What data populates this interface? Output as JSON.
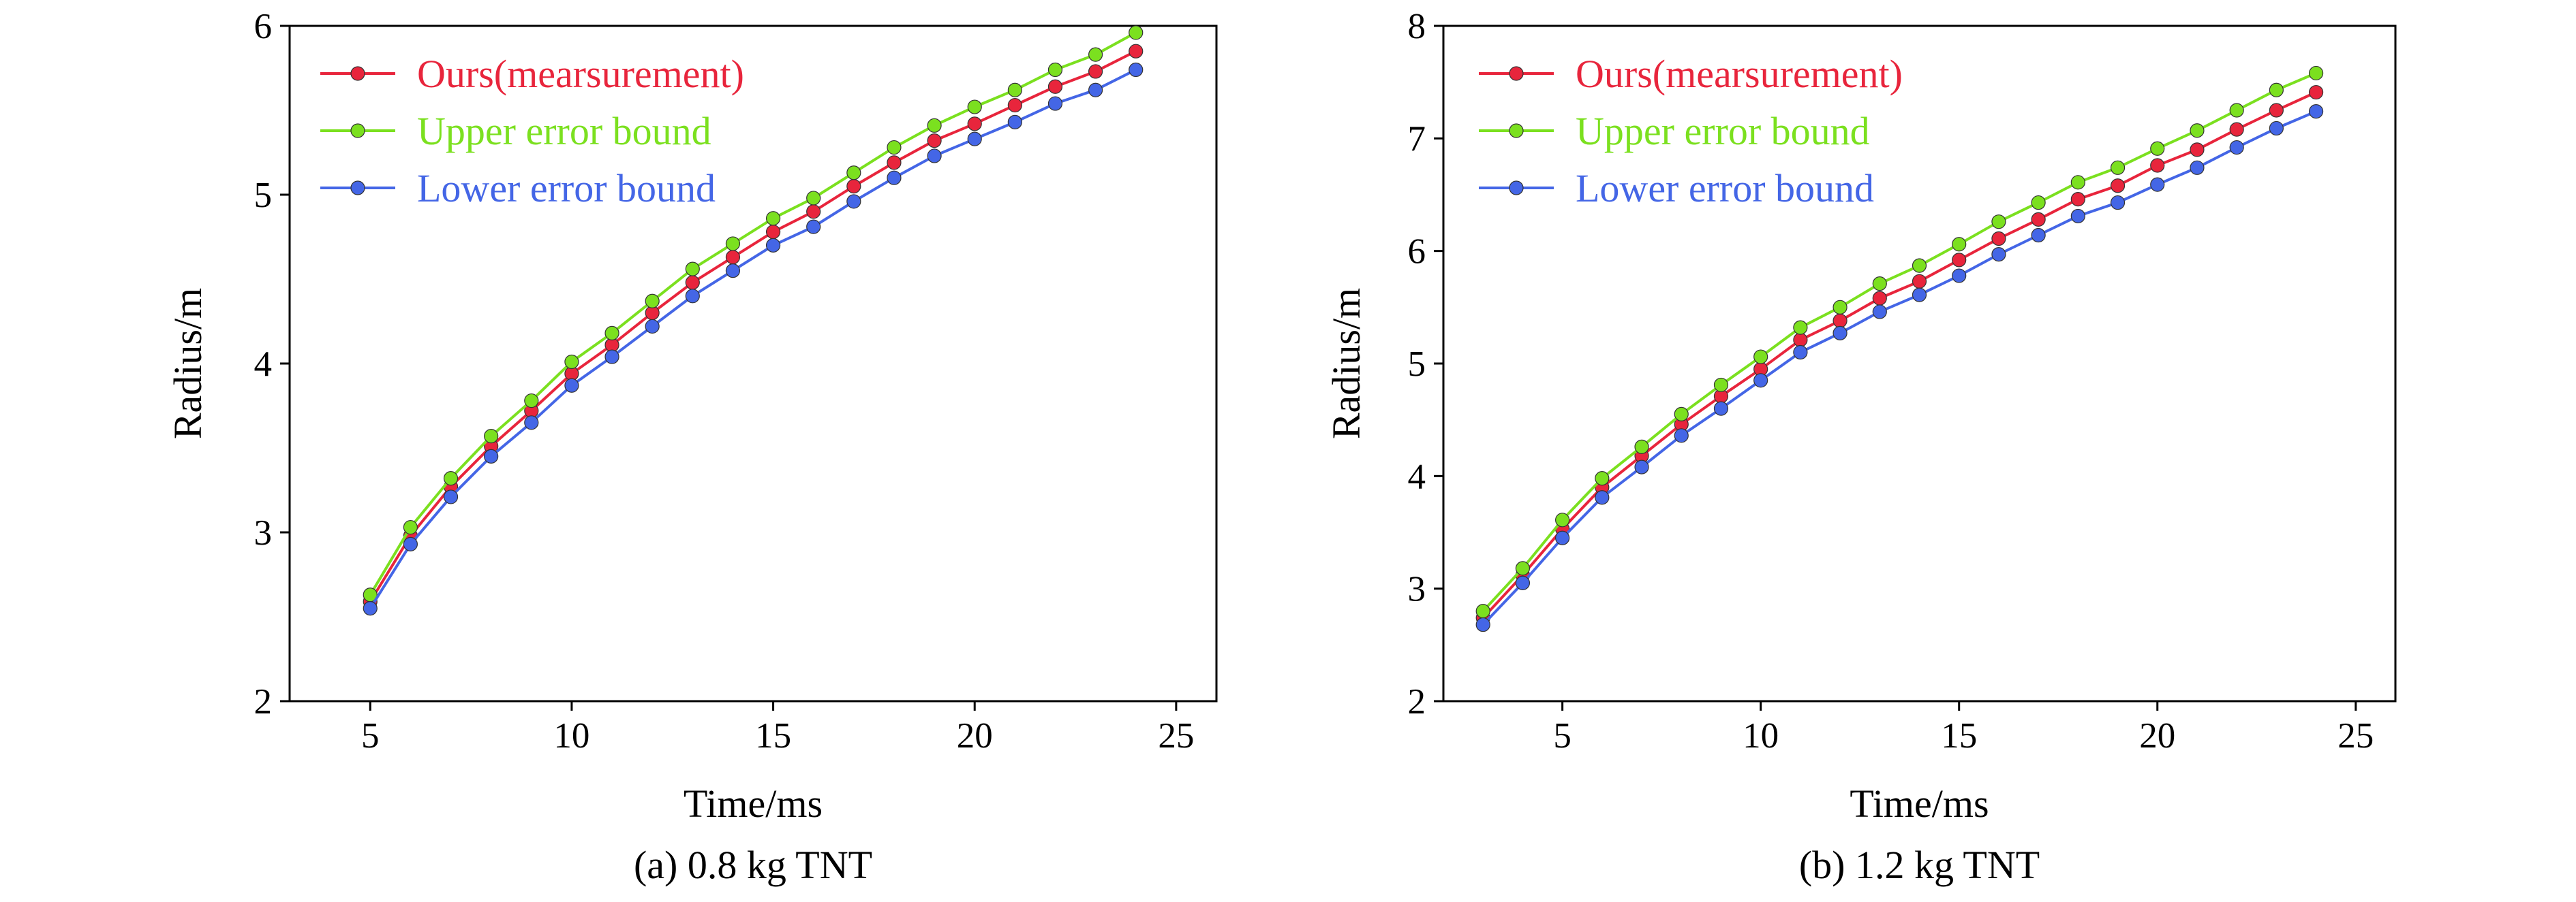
{
  "chart_data": [
    {
      "type": "line",
      "caption": "(a) 0.8 kg TNT",
      "xlabel": "Time/ms",
      "ylabel": "Radius/m",
      "xlim": [
        3,
        26
      ],
      "ylim": [
        2,
        6
      ],
      "xticks": [
        5,
        10,
        15,
        20,
        25
      ],
      "yticks": [
        2,
        3,
        4,
        5,
        6
      ],
      "grid": false,
      "legend_position": "top-left",
      "x": [
        5,
        6,
        7,
        8,
        9,
        10,
        11,
        12,
        13,
        14,
        15,
        16,
        17,
        18,
        19,
        20,
        21,
        22,
        23,
        24
      ],
      "series": [
        {
          "name": "Ours(mearsurement)",
          "color": "#e8253c",
          "values": [
            2.59,
            2.98,
            3.27,
            3.51,
            3.72,
            3.94,
            4.11,
            4.3,
            4.48,
            4.63,
            4.78,
            4.9,
            5.05,
            5.19,
            5.32,
            5.42,
            5.53,
            5.64,
            5.73,
            5.85
          ]
        },
        {
          "name": "Upper error bound",
          "color": "#7be01f",
          "values": [
            2.63,
            3.03,
            3.32,
            3.57,
            3.78,
            4.01,
            4.18,
            4.37,
            4.56,
            4.71,
            4.86,
            4.98,
            5.13,
            5.28,
            5.41,
            5.52,
            5.62,
            5.74,
            5.83,
            5.96
          ]
        },
        {
          "name": "Lower error bound",
          "color": "#4466e6",
          "values": [
            2.55,
            2.93,
            3.21,
            3.45,
            3.65,
            3.87,
            4.04,
            4.22,
            4.4,
            4.55,
            4.7,
            4.81,
            4.96,
            5.1,
            5.23,
            5.33,
            5.43,
            5.54,
            5.62,
            5.74
          ]
        }
      ]
    },
    {
      "type": "line",
      "caption": "(b) 1.2 kg TNT",
      "xlabel": "Time/ms",
      "ylabel": "Radius/m",
      "xlim": [
        2,
        26
      ],
      "ylim": [
        2,
        8
      ],
      "xticks": [
        5,
        10,
        15,
        20,
        25
      ],
      "yticks": [
        2,
        3,
        4,
        5,
        6,
        7,
        8
      ],
      "grid": false,
      "legend_position": "top-left",
      "x": [
        3,
        4,
        5,
        6,
        7,
        8,
        9,
        10,
        11,
        12,
        13,
        14,
        15,
        16,
        17,
        18,
        19,
        20,
        21,
        22,
        23,
        24
      ],
      "series": [
        {
          "name": "Ours(mearsurement)",
          "color": "#e8253c",
          "values": [
            2.74,
            3.12,
            3.53,
            3.9,
            4.18,
            4.46,
            4.71,
            4.95,
            5.21,
            5.38,
            5.58,
            5.73,
            5.92,
            6.11,
            6.28,
            6.46,
            6.58,
            6.76,
            6.9,
            7.08,
            7.25,
            7.41
          ]
        },
        {
          "name": "Upper error bound",
          "color": "#7be01f",
          "values": [
            2.8,
            3.18,
            3.61,
            3.98,
            4.26,
            4.55,
            4.81,
            5.06,
            5.32,
            5.5,
            5.71,
            5.87,
            6.06,
            6.26,
            6.43,
            6.61,
            6.74,
            6.91,
            7.07,
            7.25,
            7.43,
            7.58
          ]
        },
        {
          "name": "Lower error bound",
          "color": "#4466e6",
          "values": [
            2.68,
            3.05,
            3.45,
            3.81,
            4.08,
            4.36,
            4.6,
            4.85,
            5.1,
            5.27,
            5.46,
            5.61,
            5.78,
            5.97,
            6.14,
            6.31,
            6.43,
            6.59,
            6.74,
            6.92,
            7.09,
            7.24
          ]
        }
      ]
    }
  ]
}
